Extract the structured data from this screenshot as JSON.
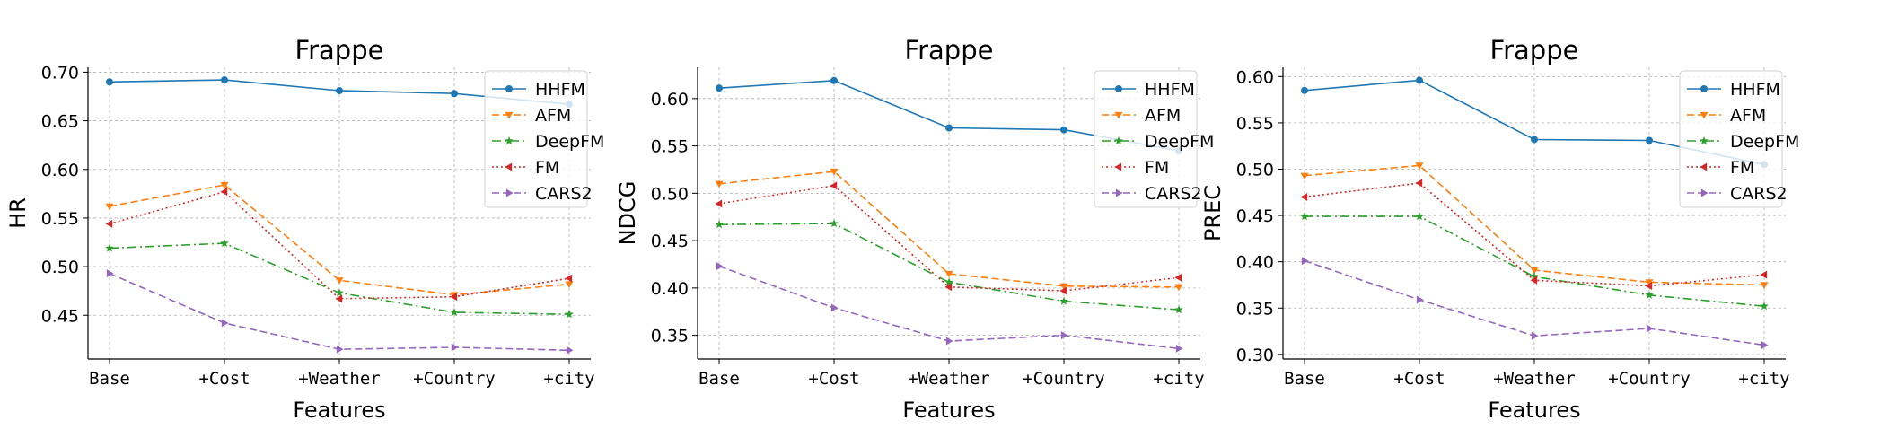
{
  "colors": {
    "HHFM": "#1f77b4",
    "AFM": "#ff7f0e",
    "DeepFM": "#2ca02c",
    "FM": "#d62728",
    "CARS2": "#9467bd",
    "grid": "#b0b0b0",
    "axis": "#000000"
  },
  "chart_data": [
    {
      "type": "line",
      "title": "Frappe",
      "xlabel": "Features",
      "ylabel": "HR",
      "categories": [
        "Base",
        "+Cost",
        "+Weather",
        "+Country",
        "+city"
      ],
      "ylim": [
        0.405,
        0.705
      ],
      "yticks": [
        0.45,
        0.5,
        0.55,
        0.6,
        0.65,
        0.7
      ],
      "ytick_labels": [
        "0.45",
        "0.50",
        "0.55",
        "0.60",
        "0.65",
        "0.70"
      ],
      "grid": true,
      "legend_position": "top-right",
      "series": [
        {
          "name": "HHFM",
          "values": [
            0.69,
            0.692,
            0.681,
            0.678,
            0.667
          ]
        },
        {
          "name": "AFM",
          "values": [
            0.562,
            0.584,
            0.486,
            0.471,
            0.482
          ]
        },
        {
          "name": "DeepFM",
          "values": [
            0.519,
            0.524,
            0.473,
            0.453,
            0.451
          ]
        },
        {
          "name": "FM",
          "values": [
            0.544,
            0.577,
            0.467,
            0.469,
            0.488
          ]
        },
        {
          "name": "CARS2",
          "values": [
            0.493,
            0.442,
            0.415,
            0.417,
            0.414
          ]
        }
      ]
    },
    {
      "type": "line",
      "title": "Frappe",
      "xlabel": "Features",
      "ylabel": "NDCG",
      "categories": [
        "Base",
        "+Cost",
        "+Weather",
        "+Country",
        "+city"
      ],
      "ylim": [
        0.325,
        0.633
      ],
      "yticks": [
        0.35,
        0.4,
        0.45,
        0.5,
        0.55,
        0.6
      ],
      "ytick_labels": [
        "0.35",
        "0.40",
        "0.45",
        "0.50",
        "0.55",
        "0.60"
      ],
      "grid": true,
      "legend_position": "top-right",
      "series": [
        {
          "name": "HHFM",
          "values": [
            0.611,
            0.619,
            0.569,
            0.567,
            0.545
          ]
        },
        {
          "name": "AFM",
          "values": [
            0.51,
            0.523,
            0.415,
            0.402,
            0.401
          ]
        },
        {
          "name": "DeepFM",
          "values": [
            0.467,
            0.468,
            0.406,
            0.386,
            0.377
          ]
        },
        {
          "name": "FM",
          "values": [
            0.489,
            0.508,
            0.401,
            0.397,
            0.411
          ]
        },
        {
          "name": "CARS2",
          "values": [
            0.423,
            0.379,
            0.344,
            0.35,
            0.336
          ]
        }
      ]
    },
    {
      "type": "line",
      "title": "Frappe",
      "xlabel": "Features",
      "ylabel": "PREC",
      "categories": [
        "Base",
        "+Cost",
        "+Weather",
        "+Country",
        "+city"
      ],
      "ylim": [
        0.295,
        0.61
      ],
      "yticks": [
        0.3,
        0.35,
        0.4,
        0.45,
        0.5,
        0.55,
        0.6
      ],
      "ytick_labels": [
        "0.30",
        "0.35",
        "0.40",
        "0.45",
        "0.50",
        "0.55",
        "0.60"
      ],
      "grid": true,
      "legend_position": "top-right",
      "series": [
        {
          "name": "HHFM",
          "values": [
            0.585,
            0.596,
            0.532,
            0.531,
            0.505
          ]
        },
        {
          "name": "AFM",
          "values": [
            0.493,
            0.504,
            0.391,
            0.378,
            0.375
          ]
        },
        {
          "name": "DeepFM",
          "values": [
            0.449,
            0.449,
            0.384,
            0.364,
            0.352
          ]
        },
        {
          "name": "FM",
          "values": [
            0.47,
            0.485,
            0.38,
            0.374,
            0.386
          ]
        },
        {
          "name": "CARS2",
          "values": [
            0.401,
            0.359,
            0.32,
            0.328,
            0.31
          ]
        }
      ]
    }
  ]
}
